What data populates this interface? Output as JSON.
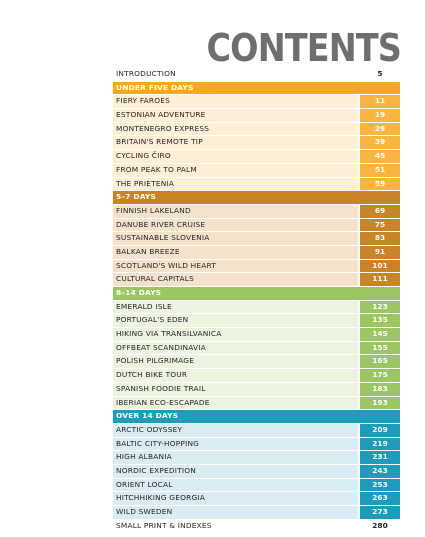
{
  "header": {
    "title": "CONTENTS"
  },
  "intro": {
    "label": "INTRODUCTION",
    "page": 5
  },
  "sections": [
    {
      "title": "UNDER FIVE DAYS",
      "entries": [
        {
          "label": "FIERY FAROES",
          "page": 11
        },
        {
          "label": "ESTONIAN ADVENTURE",
          "page": 19
        },
        {
          "label": "MONTENEGRO EXPRESS",
          "page": 29
        },
        {
          "label": "BRITAIN'S REMOTE TIP",
          "page": 39
        },
        {
          "label": "CYCLING ČIRO",
          "page": 45
        },
        {
          "label": "FROM PEAK TO PALM",
          "page": 51
        },
        {
          "label": "THE PRIETENIA",
          "page": 59
        }
      ]
    },
    {
      "title": "5–7 DAYS",
      "entries": [
        {
          "label": "FINNISH LAKELAND",
          "page": 69
        },
        {
          "label": "DANUBE RIVER CRUISE",
          "page": 75
        },
        {
          "label": "SUSTAINABLE SLOVENIA",
          "page": 83
        },
        {
          "label": "BALKAN BREEZE",
          "page": 91
        },
        {
          "label": "SCOTLAND'S WILD HEART",
          "page": 101
        },
        {
          "label": "CULTURAL CAPITALS",
          "page": 111
        }
      ]
    },
    {
      "title": "8–14 DAYS",
      "entries": [
        {
          "label": "EMERALD ISLE",
          "page": 123
        },
        {
          "label": "PORTUGAL'S EDEN",
          "page": 135
        },
        {
          "label": "HIKING VIA TRANSILVANICA",
          "page": 145
        },
        {
          "label": "OFFBEAT SCANDINAVIA",
          "page": 155
        },
        {
          "label": "POLISH PILGRIMAGE",
          "page": 165
        },
        {
          "label": "DUTCH BIKE TOUR",
          "page": 175
        },
        {
          "label": "SPANISH FOODIE TRAIL",
          "page": 183
        },
        {
          "label": "IBERIAN ECO-ESCAPADE",
          "page": 193
        }
      ]
    },
    {
      "title": "OVER 14 DAYS",
      "entries": [
        {
          "label": "ARCTIC ODYSSEY",
          "page": 209
        },
        {
          "label": "BALTIC CITY-HOPPING",
          "page": 219
        },
        {
          "label": "HIGH ALBANIA",
          "page": 231
        },
        {
          "label": "NORDIC EXPEDITION",
          "page": 243
        },
        {
          "label": "ORIENT LOCAL",
          "page": 253
        },
        {
          "label": "HITCHHIKING GEORGIA",
          "page": 263
        },
        {
          "label": "WILD SWEDEN",
          "page": 273
        }
      ]
    }
  ],
  "outro": {
    "label": "SMALL PRINT & INDEXES",
    "page": 280
  }
}
